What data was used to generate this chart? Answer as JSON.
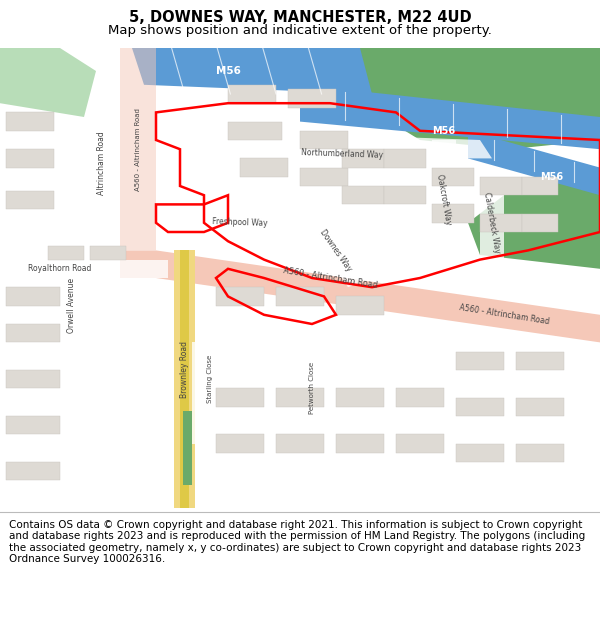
{
  "title_line1": "5, DOWNES WAY, MANCHESTER, M22 4UD",
  "title_line2": "Map shows position and indicative extent of the property.",
  "footer_text": "Contains OS data © Crown copyright and database right 2021. This information is subject to Crown copyright and database rights 2023 and is reproduced with the permission of HM Land Registry. The polygons (including the associated geometry, namely x, y co-ordinates) are subject to Crown copyright and database rights 2023 Ordnance Survey 100026316.",
  "title_fontsize": 10.5,
  "subtitle_fontsize": 9.5,
  "footer_fontsize": 7.5,
  "fig_width": 6.0,
  "fig_height": 6.25,
  "map_bg": "#f2ede8",
  "motorway_color": "#5b9bd5",
  "a_road_color": "#f5c8b8",
  "green_dark": "#6aaa6a",
  "green_light": "#b8ddb8",
  "property_color": "#ff0000",
  "property_lw": 1.8,
  "building_face": "#dedad4",
  "building_edge": "#c8c4be",
  "text_color": "#444444",
  "white": "#ffffff",
  "divider": "#bbbbbb"
}
